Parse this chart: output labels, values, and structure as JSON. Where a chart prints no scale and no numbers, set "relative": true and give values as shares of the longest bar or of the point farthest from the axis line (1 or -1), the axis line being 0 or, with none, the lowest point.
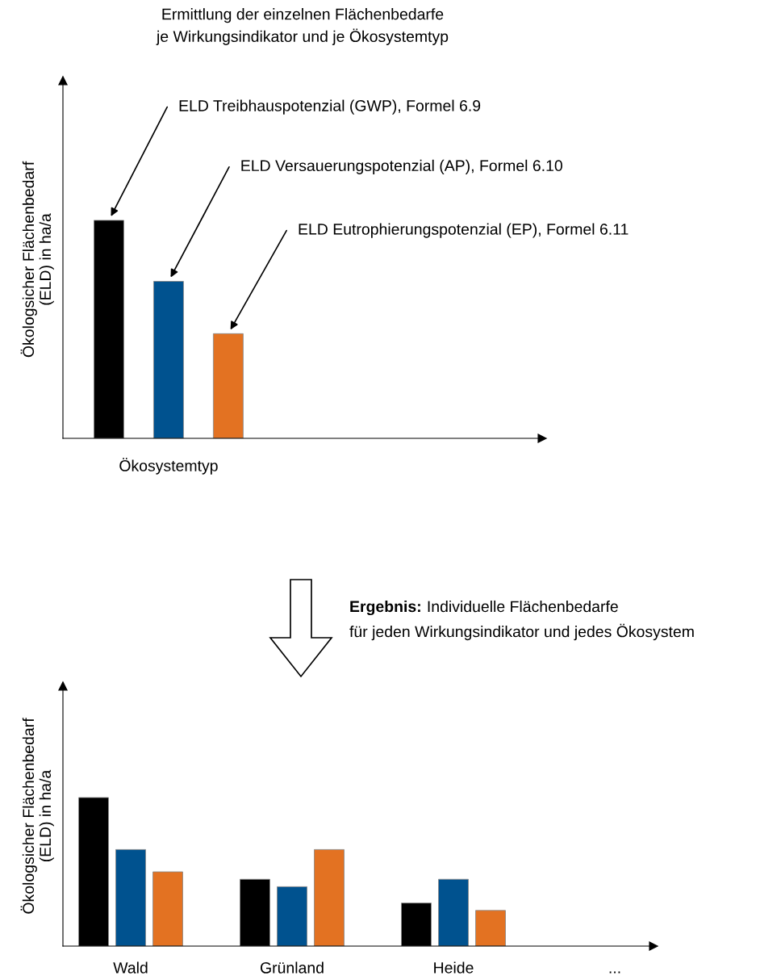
{
  "chart_data": [
    {
      "type": "bar",
      "title": "Ermittlung der einzelnen Flächenbedarfe\nje Wirkungsindikator und je Ökosystemtyp",
      "ylabel": "Ökologsicher Flächenbedarf\n(ELD) in ha/a",
      "xlabel": "Ökosystemtyp",
      "categories": [
        null,
        null,
        null
      ],
      "relative": true,
      "grid": false,
      "legend": false,
      "values": [
        1,
        0.72,
        0.48
      ],
      "colors": [
        "#000000",
        "#00528f",
        "#e37222"
      ],
      "annotations": [
        "ELD Treibhauspotenzial (GWP), Formel 6.9",
        "ELD Versauerungspotenzial (AP), Formel 6.10",
        "ELD Eutrophierungspotenzial (EP), Formel 6.11"
      ]
    },
    {
      "type": "bar",
      "ylabel": "Ökologsicher Flächenbedarf\n(ELD) in ha/a",
      "categories": [
        "Wald",
        "Grünland",
        "Heide",
        "..."
      ],
      "relative": true,
      "grid": false,
      "legend": false,
      "series": [
        {
          "color": "#000000",
          "values": [
            1,
            0.45,
            0.29,
            null
          ]
        },
        {
          "color": "#00528f",
          "values": [
            0.65,
            0.4,
            0.45,
            null
          ]
        },
        {
          "color": "#e37222",
          "values": [
            0.5,
            0.65,
            0.24,
            null
          ]
        }
      ],
      "annotations": [
        "Ergebnis:",
        "Individuelle Flächenbedarfe",
        "für jeden Wirkungsindikator und jedes Ökosystem"
      ]
    }
  ]
}
